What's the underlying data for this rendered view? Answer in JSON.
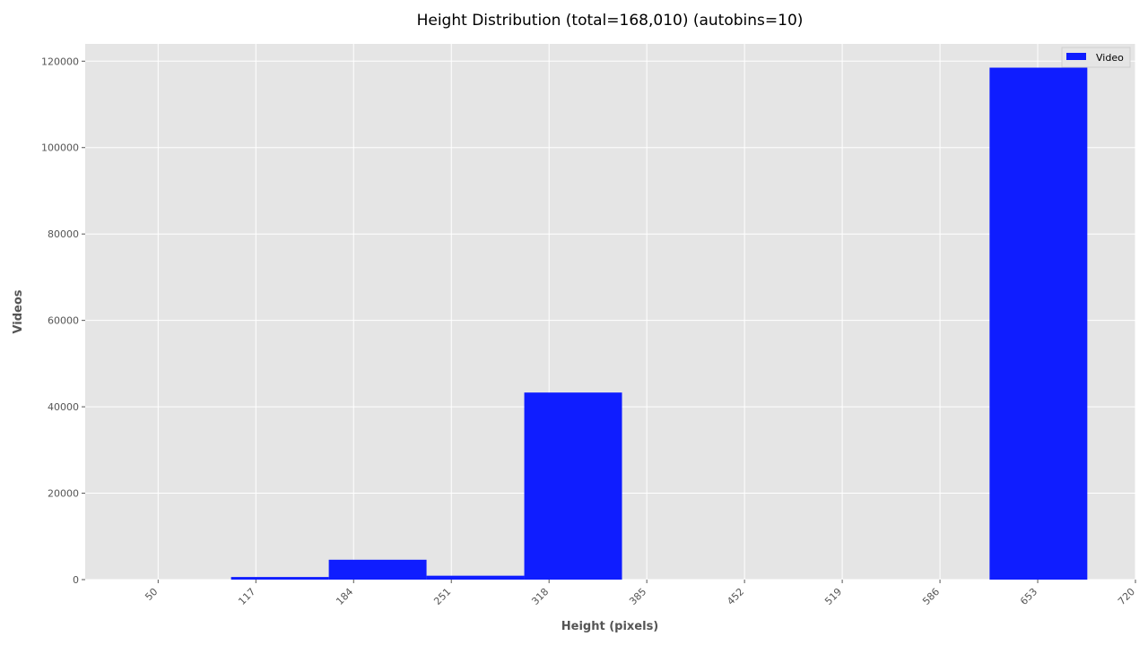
{
  "chart_data": {
    "type": "bar",
    "title": "Height Distribution (total=168,010) (autobins=10)",
    "xlabel": "Height (pixels)",
    "ylabel": "Videos",
    "x_tick_labels": [
      "50",
      "117",
      "184",
      "251",
      "318",
      "385",
      "452",
      "519",
      "586",
      "653",
      "720"
    ],
    "y_tick_labels": [
      "0",
      "20000",
      "40000",
      "60000",
      "80000",
      "100000",
      "120000"
    ],
    "y_ticks": [
      0,
      20000,
      40000,
      60000,
      80000,
      100000,
      120000
    ],
    "ylim": [
      0,
      124000
    ],
    "xlim": [
      0,
      720
    ],
    "grid": true,
    "legend_position": "top-right",
    "series": [
      {
        "name": "Video",
        "color": "#0f1dff",
        "bars": [
          {
            "left": 100,
            "right": 167,
            "value": 600
          },
          {
            "left": 167,
            "right": 234,
            "value": 4600
          },
          {
            "left": 234,
            "right": 301,
            "value": 900
          },
          {
            "left": 301,
            "right": 368,
            "value": 43300
          },
          {
            "left": 620,
            "right": 687,
            "value": 118500
          }
        ]
      }
    ],
    "colors": {
      "background": "#e5e5e5",
      "grid": "#ffffff",
      "tick": "#555555"
    }
  }
}
